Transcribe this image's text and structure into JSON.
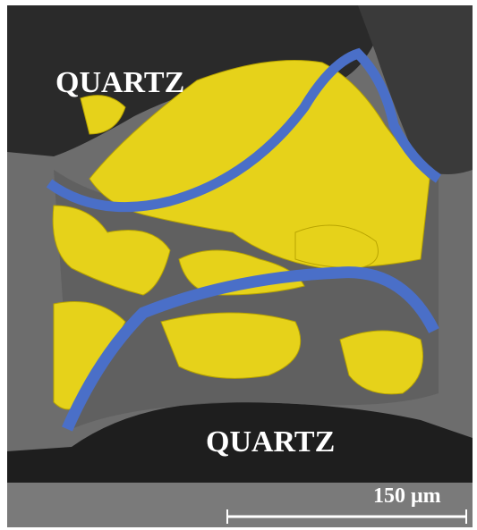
{
  "labels": {
    "top": "QUARTZ",
    "bottom": "QUARTZ"
  },
  "scale_bar": {
    "label": "150 μm"
  }
}
